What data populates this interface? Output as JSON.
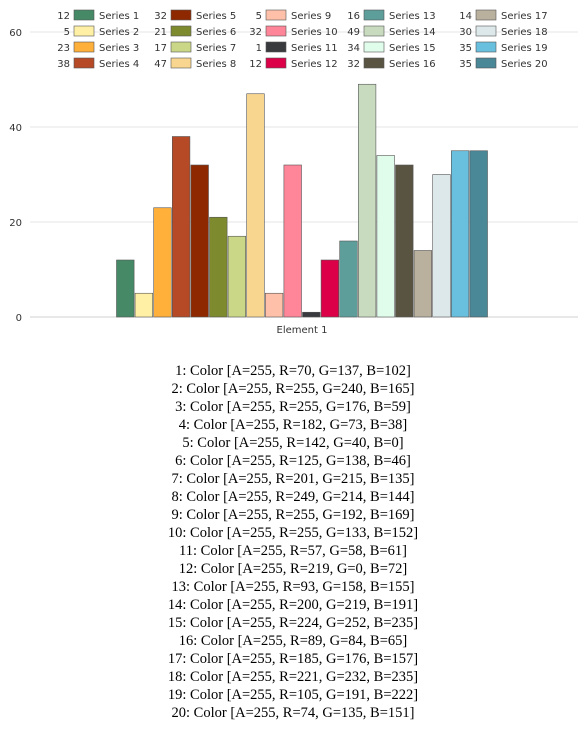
{
  "chart_data": {
    "type": "bar",
    "categories": [
      "Element 1"
    ],
    "ylim": [
      0,
      60
    ],
    "yticks": [
      0,
      20,
      40,
      60
    ],
    "grid": true,
    "legend_position": "top",
    "series": [
      {
        "name": "Series 1",
        "values": [
          12
        ],
        "color": "#468966"
      },
      {
        "name": "Series 2",
        "values": [
          5
        ],
        "color": "#FFF0A5"
      },
      {
        "name": "Series 3",
        "values": [
          23
        ],
        "color": "#FFB03B"
      },
      {
        "name": "Series 4",
        "values": [
          38
        ],
        "color": "#B64926"
      },
      {
        "name": "Series 5",
        "values": [
          32
        ],
        "color": "#8E2800"
      },
      {
        "name": "Series 6",
        "values": [
          21
        ],
        "color": "#7D8A2E"
      },
      {
        "name": "Series 7",
        "values": [
          17
        ],
        "color": "#C9D787"
      },
      {
        "name": "Series 8",
        "values": [
          47
        ],
        "color": "#F9D690"
      },
      {
        "name": "Series 9",
        "values": [
          5
        ],
        "color": "#FFC0A9"
      },
      {
        "name": "Series 10",
        "values": [
          32
        ],
        "color": "#FF8598"
      },
      {
        "name": "Series 11",
        "values": [
          1
        ],
        "color": "#393A3D"
      },
      {
        "name": "Series 12",
        "values": [
          12
        ],
        "color": "#DB0048"
      },
      {
        "name": "Series 13",
        "values": [
          16
        ],
        "color": "#5D9E9B"
      },
      {
        "name": "Series 14",
        "values": [
          49
        ],
        "color": "#C8DBBF"
      },
      {
        "name": "Series 15",
        "values": [
          34
        ],
        "color": "#E0FCEB"
      },
      {
        "name": "Series 16",
        "values": [
          32
        ],
        "color": "#595441"
      },
      {
        "name": "Series 17",
        "values": [
          14
        ],
        "color": "#B9B09D"
      },
      {
        "name": "Series 18",
        "values": [
          30
        ],
        "color": "#DDE8EB"
      },
      {
        "name": "Series 19",
        "values": [
          35
        ],
        "color": "#69BFDE"
      },
      {
        "name": "Series 20",
        "values": [
          35
        ],
        "color": "#4A8797"
      }
    ]
  },
  "color_list": [
    "1: Color [A=255, R=70, G=137, B=102]",
    "2: Color [A=255, R=255, G=240, B=165]",
    "3: Color [A=255, R=255, G=176, B=59]",
    "4: Color [A=255, R=182, G=73, B=38]",
    "5: Color [A=255, R=142, G=40, B=0]",
    "6: Color [A=255, R=125, G=138, B=46]",
    "7: Color [A=255, R=201, G=215, B=135]",
    "8: Color [A=255, R=249, G=214, B=144]",
    "9: Color [A=255, R=255, G=192, B=169]",
    "10: Color [A=255, R=255, G=133, B=152]",
    "11: Color [A=255, R=57, G=58, B=61]",
    "12: Color [A=255, R=219, G=0, B=72]",
    "13: Color [A=255, R=93, G=158, B=155]",
    "14: Color [A=255, R=200, G=219, B=191]",
    "15: Color [A=255, R=224, G=252, B=235]",
    "16: Color [A=255, R=89, G=84, B=65]",
    "17: Color [A=255, R=185, G=176, B=157]",
    "18: Color [A=255, R=221, G=232, B=235]",
    "19: Color [A=255, R=105, G=191, B=222]",
    "20: Color [A=255, R=74, G=135, B=151]"
  ]
}
